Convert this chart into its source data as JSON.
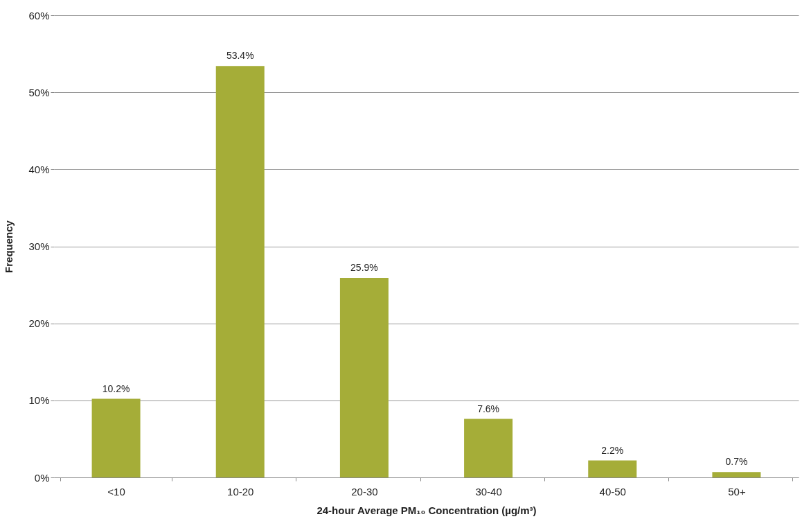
{
  "chart_data": {
    "type": "bar",
    "xlabel": "24-hour Average PM₁₀ Concentration (µg/m³)",
    "ylabel": "Frequency",
    "categories": [
      "<10",
      "10-20",
      "20-30",
      "30-40",
      "40-50",
      "50+"
    ],
    "values": [
      10.2,
      53.4,
      25.9,
      7.6,
      2.2,
      0.7
    ],
    "value_labels": [
      "10.2%",
      "53.4%",
      "25.9%",
      "7.6%",
      "2.2%",
      "0.7%"
    ],
    "color": "#a5ad38",
    "ylim": [
      0,
      60
    ],
    "yticks": [
      {
        "value": 0,
        "label": "0%"
      },
      {
        "value": 10,
        "label": "10%"
      },
      {
        "value": 20,
        "label": "20%"
      },
      {
        "value": 30,
        "label": "30%"
      },
      {
        "value": 40,
        "label": "40%"
      },
      {
        "value": 50,
        "label": "50%"
      },
      {
        "value": 60,
        "label": "60%"
      }
    ],
    "grid": "y"
  }
}
